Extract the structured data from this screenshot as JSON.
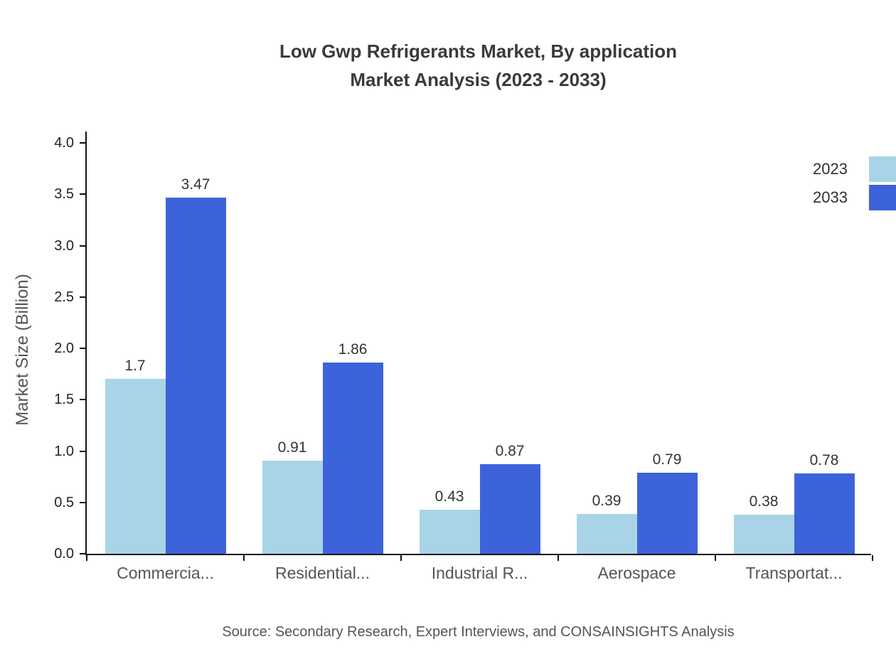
{
  "chart_data": {
    "type": "bar",
    "title": "Low Gwp Refrigerants Market, By application",
    "subtitle": "Market Analysis (2023 - 2033)",
    "ylabel": "Market Size (Billion)",
    "xlabel": "",
    "ylim": [
      0,
      4.0
    ],
    "yticks": [
      0.0,
      0.5,
      1.0,
      1.5,
      2.0,
      2.5,
      3.0,
      3.5,
      4.0
    ],
    "grid": false,
    "legend_position": "top-right",
    "categories": [
      "Commercia...",
      "Residential...",
      "Industrial R...",
      "Aerospace",
      "Transportat..."
    ],
    "series": [
      {
        "name": "2023",
        "color": "#A9D4E8",
        "values": [
          1.7,
          0.91,
          0.43,
          0.39,
          0.38
        ]
      },
      {
        "name": "2033",
        "color": "#3D63DB",
        "values": [
          3.47,
          1.86,
          0.87,
          0.79,
          0.78
        ]
      }
    ],
    "source": "Source: Secondary Research, Expert Interviews, and CONSAINSIGHTS Analysis"
  }
}
